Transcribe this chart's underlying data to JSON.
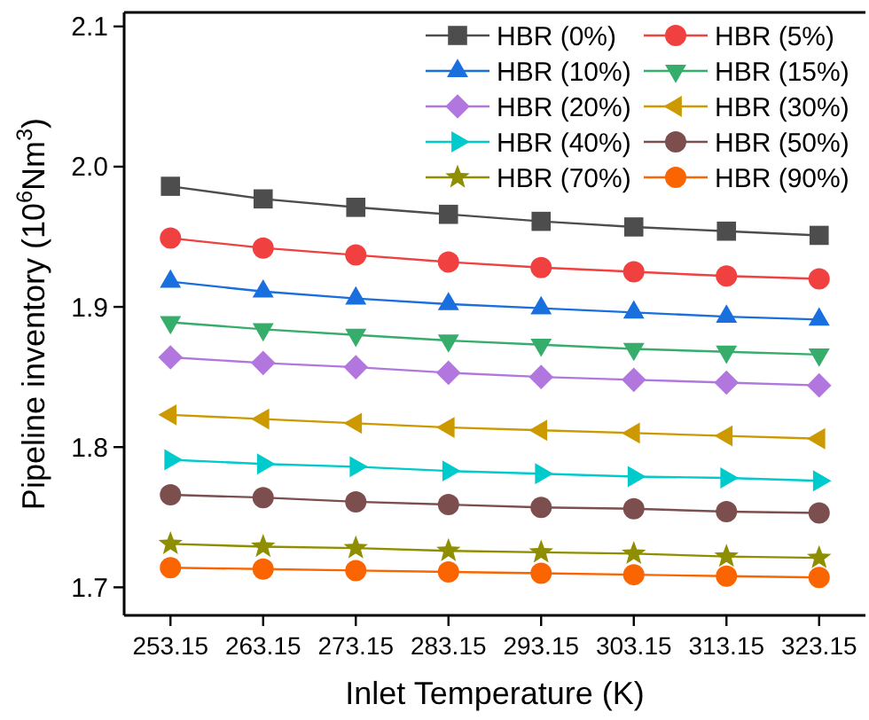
{
  "chart_data": {
    "type": "line",
    "xlabel": "Inlet Temperature (K)",
    "ylabel": "Pipeline inventory (10$^{6}$Nm$^{3}$)",
    "x": [
      253.15,
      263.15,
      273.15,
      283.15,
      293.15,
      303.15,
      313.15,
      323.15
    ],
    "xlim": [
      248.15,
      328.15
    ],
    "xticks": [
      {
        "value": 253.15,
        "label": "253.15"
      },
      {
        "value": 263.15,
        "label": "263.15"
      },
      {
        "value": 273.15,
        "label": "273.15"
      },
      {
        "value": 283.15,
        "label": "283.15"
      },
      {
        "value": 293.15,
        "label": "293.15"
      },
      {
        "value": 303.15,
        "label": "303.15"
      },
      {
        "value": 313.15,
        "label": "313.15"
      },
      {
        "value": 323.15,
        "label": "323.15"
      }
    ],
    "ylim": [
      1.68,
      2.11
    ],
    "yticks": [
      {
        "value": 1.7,
        "label": "1.7"
      },
      {
        "value": 1.8,
        "label": "1.8"
      },
      {
        "value": 1.9,
        "label": "1.9"
      },
      {
        "value": 2.0,
        "label": "2.0"
      },
      {
        "value": 2.1,
        "label": "2.1"
      }
    ],
    "legend": "top right",
    "grid": false,
    "line_style": "solid",
    "series": [
      {
        "name": "HBR (0%)",
        "color": "#4d4d4d",
        "marker": "square",
        "values": [
          1.986,
          1.977,
          1.971,
          1.966,
          1.961,
          1.957,
          1.954,
          1.951
        ]
      },
      {
        "name": "HBR (5%)",
        "color": "#f04040",
        "marker": "circle",
        "values": [
          1.949,
          1.942,
          1.937,
          1.932,
          1.928,
          1.925,
          1.922,
          1.92
        ]
      },
      {
        "name": "HBR (10%)",
        "color": "#1a6fdf",
        "marker": "triangle",
        "values": [
          1.918,
          1.911,
          1.906,
          1.902,
          1.899,
          1.896,
          1.893,
          1.891
        ]
      },
      {
        "name": "HBR (15%)",
        "color": "#37ad6b",
        "marker": "triangle-down",
        "values": [
          1.889,
          1.884,
          1.88,
          1.876,
          1.873,
          1.87,
          1.868,
          1.866
        ]
      },
      {
        "name": "HBR (20%)",
        "color": "#b177de",
        "marker": "diamond",
        "values": [
          1.864,
          1.86,
          1.857,
          1.853,
          1.85,
          1.848,
          1.846,
          1.844
        ]
      },
      {
        "name": "HBR (30%)",
        "color": "#cc9900",
        "marker": "triangle-left",
        "values": [
          1.823,
          1.82,
          1.817,
          1.814,
          1.812,
          1.81,
          1.808,
          1.806
        ]
      },
      {
        "name": "HBR (40%)",
        "color": "#00cbcc",
        "marker": "triangle-right",
        "values": [
          1.791,
          1.788,
          1.786,
          1.783,
          1.781,
          1.779,
          1.778,
          1.776
        ]
      },
      {
        "name": "HBR (50%)",
        "color": "#7d4e4e",
        "marker": "circle",
        "values": [
          1.766,
          1.764,
          1.761,
          1.759,
          1.757,
          1.756,
          1.754,
          1.753
        ]
      },
      {
        "name": "HBR (70%)",
        "color": "#8e8e00",
        "marker": "star",
        "values": [
          1.731,
          1.729,
          1.728,
          1.726,
          1.725,
          1.724,
          1.722,
          1.721
        ]
      },
      {
        "name": "HBR (90%)",
        "color": "#fb6501",
        "marker": "circle",
        "values": [
          1.714,
          1.713,
          1.712,
          1.711,
          1.71,
          1.709,
          1.708,
          1.707
        ]
      }
    ]
  }
}
